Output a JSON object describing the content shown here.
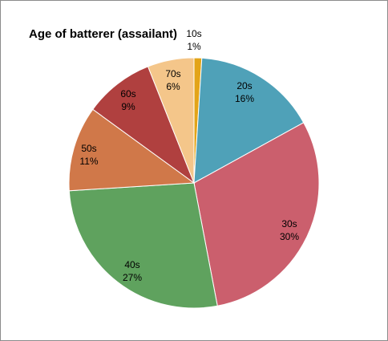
{
  "chart_data": {
    "type": "pie",
    "title": "Age of batterer (assailant)",
    "slices": [
      {
        "category": "10s",
        "value": 1,
        "label": "1%",
        "color": "#E3A418"
      },
      {
        "category": "20s",
        "value": 16,
        "label": "16%",
        "color": "#4FA1B8"
      },
      {
        "category": "30s",
        "value": 30,
        "label": "30%",
        "color": "#CB5F6D"
      },
      {
        "category": "40s",
        "value": 27,
        "label": "27%",
        "color": "#5FA25E"
      },
      {
        "category": "50s",
        "value": 11,
        "label": "11%",
        "color": "#D07849"
      },
      {
        "category": "60s",
        "value": 9,
        "label": "9%",
        "color": "#B0403F"
      },
      {
        "category": "70s",
        "value": 6,
        "label": "6%",
        "color": "#F4C68A"
      }
    ],
    "start": "12 o'clock",
    "direction": "clockwise",
    "legend": "none",
    "labels": "category and percent"
  }
}
